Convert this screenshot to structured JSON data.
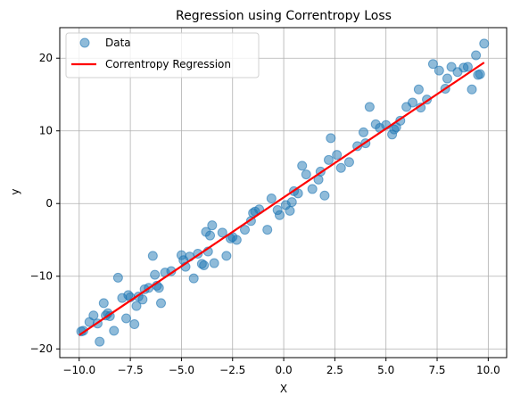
{
  "chart_data": {
    "type": "scatter",
    "title": "Regression using Correntropy Loss",
    "xlabel": "X",
    "ylabel": "y",
    "xlim": [
      -10.95,
      10.9
    ],
    "ylim": [
      -21.2,
      24.2
    ],
    "xticks": [
      -10.0,
      -7.5,
      -5.0,
      -2.5,
      0.0,
      2.5,
      5.0,
      7.5,
      10.0
    ],
    "xtick_labels": [
      "−10.0",
      "−7.5",
      "−5.0",
      "−2.5",
      "0.0",
      "2.5",
      "5.0",
      "7.5",
      "10.0"
    ],
    "yticks": [
      -20,
      -10,
      0,
      10,
      20
    ],
    "ytick_labels": [
      "−20",
      "−10",
      "0",
      "10",
      "20"
    ],
    "grid": true,
    "legend_position": "upper-left",
    "series": [
      {
        "name": "Data",
        "kind": "scatter",
        "color": "#1f77b4",
        "x": [
          -9.8,
          -9.5,
          -9.3,
          -9.0,
          -8.8,
          -8.6,
          -8.5,
          -8.3,
          -8.1,
          -7.9,
          -7.7,
          -7.6,
          -7.3,
          -7.1,
          -6.8,
          -6.6,
          -6.4,
          -6.3,
          -6.1,
          -6.0,
          -5.8,
          -5.0,
          -4.8,
          -4.6,
          -4.4,
          -4.2,
          -4.0,
          -3.9,
          -3.8,
          -3.6,
          -3.5,
          -3.4,
          -3.0,
          -2.8,
          -2.6,
          -2.3,
          -1.9,
          -1.6,
          -1.4,
          -1.2,
          -0.8,
          -0.6,
          -0.2,
          0.1,
          0.3,
          0.5,
          0.7,
          0.9,
          1.1,
          1.4,
          1.8,
          2.0,
          2.3,
          2.6,
          2.8,
          3.2,
          3.6,
          4.0,
          4.2,
          4.5,
          4.7,
          5.0,
          5.3,
          5.5,
          5.7,
          6.0,
          6.3,
          6.6,
          7.0,
          7.3,
          7.6,
          7.9,
          8.2,
          8.5,
          8.8,
          9.0,
          9.2,
          9.4,
          9.6,
          9.8,
          -9.9,
          -9.1,
          -8.7,
          -7.5,
          -7.2,
          -6.9,
          -6.2,
          -5.5,
          -4.9,
          -3.7,
          -2.5,
          -1.5,
          -0.3,
          0.4,
          1.7,
          2.2,
          3.9,
          5.4,
          6.7,
          8.0,
          9.5
        ],
        "y": [
          -17.5,
          -16.3,
          -15.4,
          -19.0,
          -13.7,
          -15.1,
          -15.5,
          -17.5,
          -10.2,
          -13.0,
          -15.8,
          -12.6,
          -16.6,
          -12.8,
          -11.8,
          -11.6,
          -7.2,
          -9.8,
          -11.6,
          -13.7,
          -9.5,
          -7.1,
          -8.7,
          -7.3,
          -10.3,
          -6.9,
          -8.3,
          -8.5,
          -3.9,
          -4.4,
          -3.0,
          -8.2,
          -4.0,
          -7.2,
          -4.8,
          -5.0,
          -3.6,
          -2.4,
          -1.1,
          -0.8,
          -3.6,
          0.7,
          -1.6,
          -0.2,
          -1.0,
          1.7,
          1.4,
          5.2,
          4.0,
          2.0,
          4.4,
          1.1,
          9.0,
          6.7,
          4.9,
          5.7,
          7.9,
          8.3,
          13.3,
          10.9,
          10.4,
          10.8,
          9.5,
          10.5,
          11.4,
          13.3,
          13.9,
          15.7,
          14.3,
          19.2,
          18.3,
          15.8,
          18.8,
          18.1,
          18.7,
          18.8,
          15.7,
          20.4,
          17.8,
          22.0,
          -17.6,
          -16.5,
          -15.4,
          -12.9,
          -14.1,
          -13.2,
          -11.3,
          -9.3,
          -7.8,
          -6.6,
          -4.6,
          -1.3,
          -0.9,
          0.2,
          3.3,
          6.0,
          9.8,
          10.2,
          13.2,
          17.2,
          17.7
        ]
      },
      {
        "name": "Correntropy Regression",
        "kind": "line",
        "color": "#ff0000",
        "x": [
          -10.0,
          9.8
        ],
        "y": [
          -18.1,
          19.4
        ]
      }
    ]
  }
}
